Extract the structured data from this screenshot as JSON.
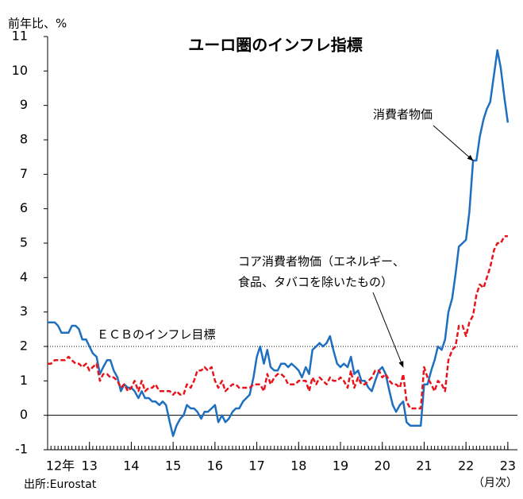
{
  "chart_data": {
    "type": "line",
    "title": "ユーロ圏のインフレ指標",
    "y_label": "前年比、%",
    "x_note": "（月次）",
    "source": "出所:Eurostat",
    "xlim": [
      12,
      23.23
    ],
    "xticks": [
      {
        "value": 12,
        "label": "12年"
      },
      13,
      14,
      15,
      16,
      17,
      18,
      19,
      20,
      21,
      22,
      23
    ],
    "ylim": [
      -1,
      11
    ],
    "yticks": [
      -1,
      0,
      1,
      2,
      3,
      4,
      5,
      6,
      7,
      8,
      9,
      10,
      11
    ],
    "zero_line": true,
    "target": {
      "value": 2,
      "label": "ＥＣＢのインフレ目標"
    },
    "annotations": [
      {
        "lines": [
          "消費者物価"
        ]
      },
      {
        "lines": [
          "コア消費者物価（エネルギー、",
          "食品、タバコを除いたもの）"
        ]
      }
    ],
    "x": [
      12,
      12.08,
      12.17,
      12.25,
      12.33,
      12.42,
      12.5,
      12.58,
      12.67,
      12.75,
      12.83,
      12.92,
      13,
      13.08,
      13.17,
      13.25,
      13.33,
      13.42,
      13.5,
      13.58,
      13.67,
      13.75,
      13.83,
      13.92,
      14,
      14.08,
      14.17,
      14.25,
      14.33,
      14.42,
      14.5,
      14.58,
      14.67,
      14.75,
      14.83,
      14.92,
      15,
      15.08,
      15.17,
      15.25,
      15.33,
      15.42,
      15.5,
      15.58,
      15.67,
      15.75,
      15.83,
      15.92,
      16,
      16.08,
      16.17,
      16.25,
      16.33,
      16.42,
      16.5,
      16.58,
      16.67,
      16.75,
      16.83,
      16.92,
      17,
      17.08,
      17.17,
      17.25,
      17.33,
      17.42,
      17.5,
      17.58,
      17.67,
      17.75,
      17.83,
      17.92,
      18,
      18.08,
      18.17,
      18.25,
      18.33,
      18.42,
      18.5,
      18.58,
      18.67,
      18.75,
      18.83,
      18.92,
      19,
      19.08,
      19.17,
      19.25,
      19.33,
      19.42,
      19.5,
      19.58,
      19.67,
      19.75,
      19.83,
      19.92,
      20,
      20.08,
      20.17,
      20.25,
      20.33,
      20.42,
      20.5,
      20.58,
      20.67,
      20.75,
      20.83,
      20.92,
      21,
      21.08,
      21.17,
      21.25,
      21.33,
      21.42,
      21.5,
      21.58,
      21.67,
      21.75,
      21.83,
      21.92,
      22,
      22.08,
      22.17,
      22.25,
      22.33,
      22.42,
      22.5,
      22.58,
      22.67,
      22.75,
      22.83,
      22.92,
      23
    ],
    "series": [
      {
        "color": "#1f6fc0",
        "dash": false,
        "values": [
          2.7,
          2.7,
          2.7,
          2.6,
          2.4,
          2.4,
          2.4,
          2.6,
          2.6,
          2.5,
          2.2,
          2.2,
          2.0,
          1.8,
          1.7,
          1.2,
          1.4,
          1.6,
          1.6,
          1.3,
          1.1,
          0.7,
          0.9,
          0.8,
          0.8,
          0.7,
          0.5,
          0.7,
          0.5,
          0.5,
          0.4,
          0.4,
          0.3,
          0.4,
          0.3,
          -0.2,
          -0.6,
          -0.3,
          -0.1,
          0.0,
          0.3,
          0.2,
          0.2,
          0.1,
          -0.1,
          0.1,
          0.1,
          0.2,
          0.3,
          -0.2,
          0.0,
          -0.2,
          -0.1,
          0.1,
          0.2,
          0.2,
          0.4,
          0.5,
          0.6,
          1.1,
          1.7,
          2.0,
          1.5,
          1.9,
          1.4,
          1.3,
          1.3,
          1.5,
          1.5,
          1.4,
          1.5,
          1.4,
          1.3,
          1.1,
          1.4,
          1.2,
          1.9,
          2.0,
          2.1,
          2.0,
          2.1,
          2.3,
          1.9,
          1.5,
          1.4,
          1.5,
          1.4,
          1.7,
          1.2,
          1.3,
          1.0,
          1.0,
          0.8,
          0.7,
          1.0,
          1.3,
          1.4,
          1.2,
          0.7,
          0.3,
          0.1,
          0.3,
          0.4,
          -0.2,
          -0.3,
          -0.3,
          -0.3,
          -0.3,
          0.9,
          0.9,
          1.3,
          1.6,
          2.0,
          1.9,
          2.2,
          3.0,
          3.4,
          4.1,
          4.9,
          5.0,
          5.1,
          5.9,
          7.4,
          7.4,
          8.1,
          8.6,
          8.9,
          9.1,
          9.9,
          10.6,
          10.1,
          9.2,
          8.5
        ]
      },
      {
        "color": "#e8141c",
        "dash": true,
        "values": [
          1.5,
          1.5,
          1.6,
          1.6,
          1.6,
          1.6,
          1.7,
          1.6,
          1.5,
          1.5,
          1.4,
          1.5,
          1.3,
          1.4,
          1.5,
          1.0,
          1.2,
          1.2,
          1.1,
          1.1,
          1.0,
          0.8,
          0.9,
          0.7,
          0.8,
          1.0,
          0.7,
          1.0,
          0.7,
          0.8,
          0.8,
          0.9,
          0.7,
          0.7,
          0.7,
          0.7,
          0.6,
          0.7,
          0.6,
          0.6,
          0.9,
          0.8,
          1.0,
          1.3,
          1.3,
          1.4,
          1.3,
          1.4,
          1.0,
          0.8,
          1.0,
          0.7,
          0.8,
          0.9,
          0.9,
          0.8,
          0.8,
          0.8,
          0.8,
          0.9,
          0.9,
          0.9,
          0.7,
          1.2,
          0.9,
          1.1,
          1.2,
          1.2,
          1.1,
          0.9,
          0.9,
          0.9,
          1.0,
          1.0,
          1.0,
          0.7,
          1.1,
          0.9,
          1.1,
          1.0,
          0.9,
          1.1,
          1.0,
          1.0,
          1.1,
          1.0,
          0.8,
          1.3,
          0.8,
          1.1,
          0.9,
          0.9,
          1.0,
          1.1,
          1.3,
          1.3,
          1.1,
          1.2,
          1.0,
          0.9,
          0.9,
          0.8,
          1.2,
          0.4,
          0.2,
          0.2,
          0.2,
          0.2,
          1.4,
          1.1,
          0.9,
          0.7,
          1.0,
          0.9,
          0.7,
          1.6,
          1.9,
          2.0,
          2.6,
          2.6,
          2.3,
          2.7,
          2.9,
          3.5,
          3.8,
          3.7,
          4.0,
          4.3,
          4.8,
          5.0,
          5.0,
          5.2,
          5.2
        ]
      }
    ]
  }
}
